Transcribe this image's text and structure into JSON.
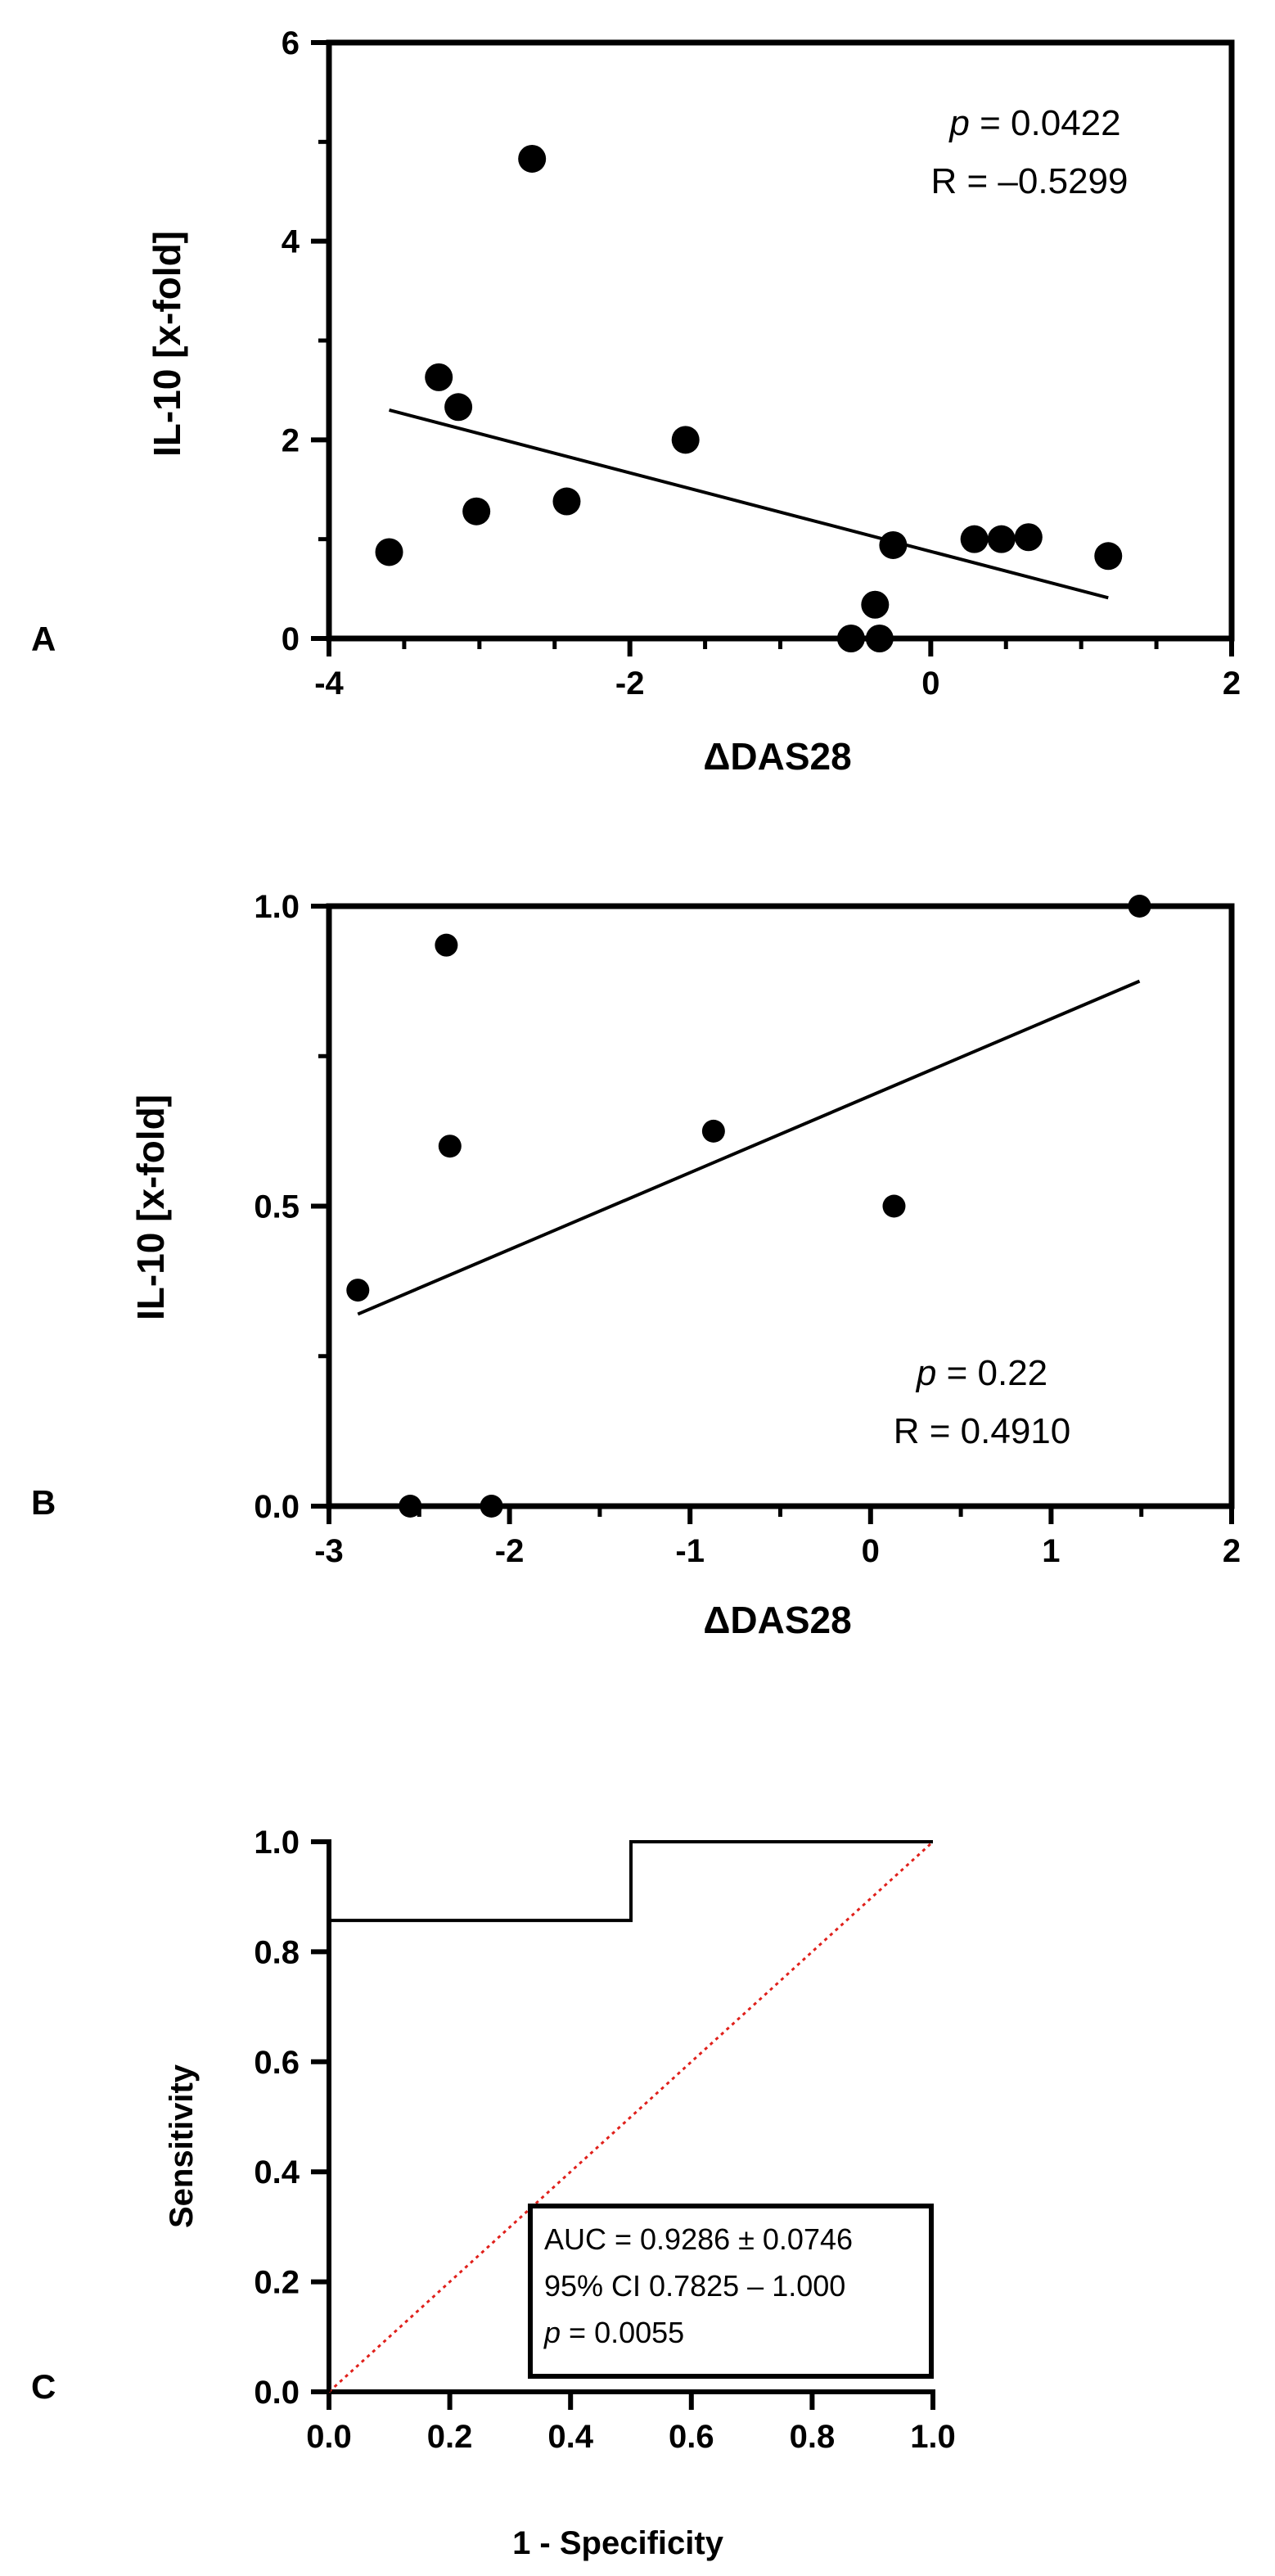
{
  "chart_data": [
    {
      "type": "scatter",
      "panel_label": "A",
      "xlabel": "ΔDAS28",
      "ylabel": "IL-10 [x-fold]",
      "xlim": [
        -4,
        2
      ],
      "ylim": [
        0,
        6
      ],
      "x_ticks": [
        "-4",
        "-2",
        "0",
        "2"
      ],
      "x_tick_values": [
        -4,
        -2,
        0,
        2
      ],
      "x_minor_step": 0.5,
      "y_ticks": [
        "0",
        "2",
        "4",
        "6"
      ],
      "y_tick_values": [
        0,
        2,
        4,
        6
      ],
      "y_minor_step": 1,
      "points": [
        {
          "x": -3.6,
          "y": 0.87
        },
        {
          "x": -3.27,
          "y": 2.63
        },
        {
          "x": -3.14,
          "y": 2.33
        },
        {
          "x": -3.02,
          "y": 1.28
        },
        {
          "x": -2.65,
          "y": 4.83
        },
        {
          "x": -2.42,
          "y": 1.38
        },
        {
          "x": -1.63,
          "y": 2.0
        },
        {
          "x": -0.53,
          "y": 0.0
        },
        {
          "x": -0.37,
          "y": 0.34
        },
        {
          "x": -0.34,
          "y": 0.0
        },
        {
          "x": -0.25,
          "y": 0.94
        },
        {
          "x": 0.29,
          "y": 1.0
        },
        {
          "x": 0.47,
          "y": 1.0
        },
        {
          "x": 0.65,
          "y": 1.02
        },
        {
          "x": 1.18,
          "y": 0.83
        }
      ],
      "fit_line": {
        "x": [
          -3.6,
          1.18
        ],
        "y": [
          2.3,
          0.41
        ]
      },
      "stat_p": "0.0422",
      "stat_r": "R = –0.5299",
      "grid": false
    },
    {
      "type": "scatter",
      "panel_label": "B",
      "xlabel": "ΔDAS28",
      "ylabel": "IL-10 [x-fold]",
      "xlim": [
        -3,
        2
      ],
      "ylim": [
        0,
        1
      ],
      "x_ticks": [
        "-3",
        "-2",
        "-1",
        "0",
        "1",
        "2"
      ],
      "x_tick_values": [
        -3,
        -2,
        -1,
        0,
        1,
        2
      ],
      "x_minor_step": 0.5,
      "y_ticks": [
        "0.0",
        "0.5",
        "1.0"
      ],
      "y_tick_values": [
        0,
        0.5,
        1.0
      ],
      "y_minor_step": 0.25,
      "points": [
        {
          "x": -2.84,
          "y": 0.36
        },
        {
          "x": -2.35,
          "y": 0.935
        },
        {
          "x": -2.33,
          "y": 0.6
        },
        {
          "x": -2.55,
          "y": 0.0
        },
        {
          "x": -2.1,
          "y": 0.0
        },
        {
          "x": -0.87,
          "y": 0.625
        },
        {
          "x": 0.13,
          "y": 0.5
        },
        {
          "x": 1.49,
          "y": 1.0
        }
      ],
      "fit_line": {
        "x": [
          -2.84,
          1.49
        ],
        "y": [
          0.32,
          0.875
        ]
      },
      "stat_p": "0.22",
      "stat_r": "R = 0.4910",
      "grid": false
    },
    {
      "type": "line",
      "panel_label": "C",
      "xlabel": "1 - Specificity",
      "ylabel": "Sensitivity",
      "xlim": [
        0,
        1
      ],
      "ylim": [
        0,
        1
      ],
      "x_ticks": [
        "0.0",
        "0.2",
        "0.4",
        "0.6",
        "0.8",
        "1.0"
      ],
      "x_tick_values": [
        0,
        0.2,
        0.4,
        0.6,
        0.8,
        1.0
      ],
      "y_ticks": [
        "0.0",
        "0.2",
        "0.4",
        "0.6",
        "0.8",
        "1.0"
      ],
      "y_tick_values": [
        0,
        0.2,
        0.4,
        0.6,
        0.8,
        1.0
      ],
      "roc_curve": {
        "x": [
          0,
          0,
          0.5,
          0.5,
          1.0
        ],
        "y": [
          0,
          0.857,
          0.857,
          1.0,
          1.0
        ]
      },
      "reference_line": {
        "x": [
          0,
          1
        ],
        "y": [
          0,
          1
        ],
        "color": "#e0201b",
        "style": "dotted"
      },
      "legend_lines": [
        "AUC = 0.9286 ± 0.0746",
        "95% CI 0.7825 – 1.000"
      ],
      "stat_p": "0.0055",
      "grid": false
    }
  ]
}
